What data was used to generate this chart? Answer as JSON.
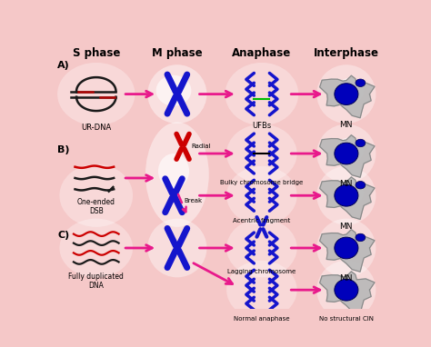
{
  "background_color": "#f5c8c8",
  "title_s_phase": "S phase",
  "title_m_phase": "M phase",
  "title_anaphase": "Anaphase",
  "title_interphase": "Interphase",
  "label_a": "A)",
  "label_b": "B)",
  "label_c": "C)",
  "label_ur_dna": "UR-DNA",
  "label_one_ended_dsb": "One-ended\nDSB",
  "label_fully_dup": "Fully duplicated\nDNA",
  "label_ufbs": "UFBs",
  "label_mn": "MN",
  "label_bulky": "Bulky chromosome bridge",
  "label_radial": "Radial",
  "label_break": "Break",
  "label_acentric": "Acentric fragment",
  "label_lagging": "Lagging chromosome",
  "label_normal_anaphase": "Normal anaphase",
  "label_no_cin": "No structural CIN",
  "arrow_color": "#e8198b",
  "dna_dark": "#1a1a1a",
  "dna_red": "#cc0000",
  "chr_blue": "#1515cc",
  "chr_red": "#cc0000",
  "cell_gray": "#b8b8b8",
  "cell_edge": "#888888",
  "nucleus_blue": "#0000bb",
  "green_bridge": "#00bb00"
}
